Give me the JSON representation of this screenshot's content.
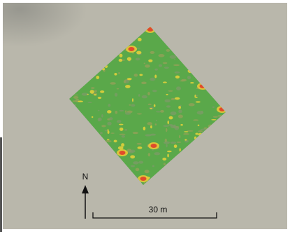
{
  "north_label": "N",
  "scale_label": "30 m"
}
